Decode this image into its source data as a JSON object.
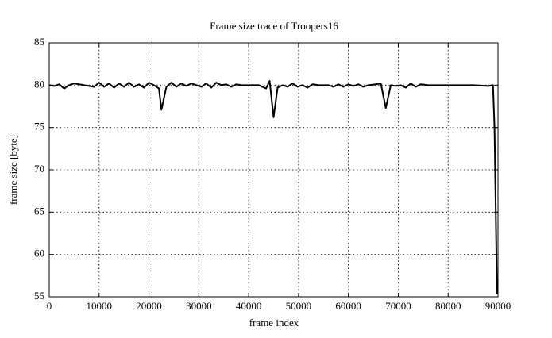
{
  "chart_data": {
    "type": "line",
    "title": "Frame size trace of Troopers16",
    "x_label": "frame index",
    "y_label": "frame size [byte]",
    "x": [
      0,
      1000,
      2000,
      3000,
      4000,
      5000,
      6000,
      7000,
      8000,
      9000,
      10000,
      11000,
      12000,
      13000,
      14000,
      15000,
      16000,
      17000,
      18000,
      19000,
      20000,
      21000,
      22000,
      22500,
      23500,
      24500,
      25500,
      26500,
      27500,
      28500,
      29500,
      30500,
      31500,
      32500,
      33500,
      34500,
      35500,
      36500,
      37500,
      38500,
      40000,
      42000,
      43500,
      44200,
      45000,
      45800,
      46800,
      47800,
      48800,
      49800,
      50800,
      51800,
      52800,
      54000,
      56000,
      57000,
      58000,
      59000,
      60000,
      61000,
      62000,
      63000,
      64000,
      65500,
      66500,
      67500,
      68500,
      69500,
      70500,
      71500,
      72500,
      73500,
      74500,
      76000,
      80000,
      85000,
      88000,
      89000,
      89300,
      89800
    ],
    "series": [
      {
        "name": "Troopers16",
        "color": "#000000",
        "values": [
          80.0,
          79.9,
          80.1,
          79.6,
          80.0,
          80.2,
          80.1,
          80.0,
          79.9,
          79.8,
          80.3,
          79.8,
          80.2,
          79.7,
          80.2,
          79.8,
          80.3,
          79.8,
          80.1,
          79.7,
          80.3,
          80.0,
          79.6,
          77.1,
          79.8,
          80.3,
          79.8,
          80.2,
          79.9,
          80.2,
          80.0,
          79.8,
          80.2,
          79.7,
          80.3,
          80.0,
          80.1,
          79.8,
          80.1,
          80.0,
          80.0,
          80.0,
          79.6,
          80.5,
          76.2,
          79.7,
          80.0,
          79.8,
          80.2,
          79.8,
          80.0,
          79.7,
          80.1,
          80.0,
          80.0,
          79.8,
          80.1,
          79.8,
          80.1,
          79.9,
          80.1,
          79.8,
          80.0,
          80.1,
          80.2,
          77.3,
          80.0,
          79.9,
          80.0,
          79.7,
          80.2,
          79.8,
          80.1,
          80.0,
          80.0,
          80.0,
          79.9,
          80.0,
          75.0,
          55.3
        ]
      }
    ],
    "xlim": [
      0,
      90000
    ],
    "xticks": [
      0,
      10000,
      20000,
      30000,
      40000,
      50000,
      60000,
      70000,
      80000,
      90000
    ],
    "ylim": [
      55,
      85
    ],
    "yticks": [
      55,
      60,
      65,
      70,
      75,
      80,
      85
    ],
    "grid": true
  }
}
